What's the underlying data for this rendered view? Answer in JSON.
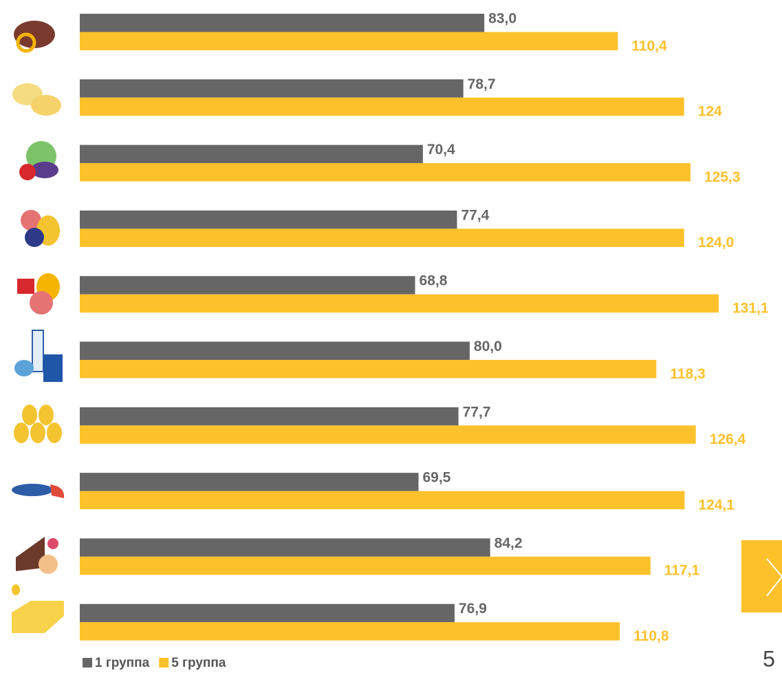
{
  "chart_data": {
    "type": "bar",
    "orientation": "horizontal",
    "categories": [
      null,
      null,
      null,
      null,
      null,
      null,
      null,
      null,
      null,
      null
    ],
    "series": [
      {
        "name": "1 группа",
        "color": "#666666",
        "values": [
          83.0,
          78.7,
          70.4,
          77.4,
          68.8,
          80.0,
          77.7,
          69.5,
          84.2,
          76.9
        ],
        "value_labels": [
          "83,0",
          "78,7",
          "70,4",
          "77,4",
          "68,8",
          "80,0",
          "77,7",
          "69,5",
          "84,2",
          "76,9"
        ]
      },
      {
        "name": "5 группа",
        "color": "#fdc12b",
        "values": [
          110.4,
          124,
          125.3,
          124.0,
          131.1,
          118.3,
          126.4,
          124.1,
          117.1,
          110.8
        ],
        "value_labels": [
          "110,4",
          "124",
          "125,3",
          "124,0",
          "131,1",
          "118,3",
          "126,4",
          "124,1",
          "117,1",
          "110,8"
        ]
      }
    ],
    "page_number": "5"
  }
}
